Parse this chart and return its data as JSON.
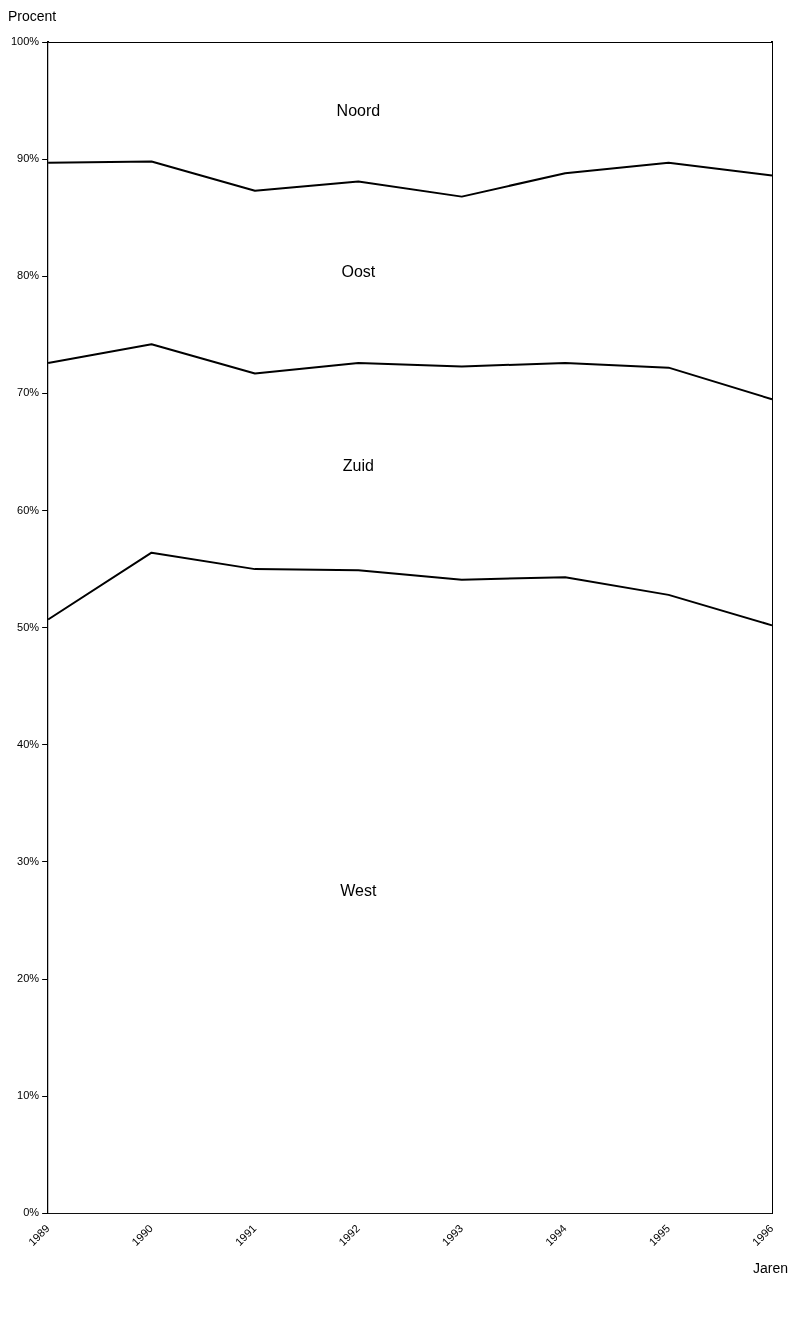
{
  "chart_data": {
    "type": "area",
    "stacked": true,
    "xlabel": "Jaren",
    "ylabel": "Procent",
    "categories": [
      "1989",
      "1990",
      "1991",
      "1992",
      "1993",
      "1994",
      "1995",
      "1996"
    ],
    "series": [
      {
        "name": "West",
        "color": "#ffffff",
        "values": [
          50.7,
          56.4,
          55.0,
          54.9,
          54.1,
          54.3,
          52.8,
          50.2
        ]
      },
      {
        "name": "Zuid",
        "color": "#ffffff",
        "values": [
          21.9,
          17.8,
          16.7,
          17.7,
          18.2,
          18.3,
          19.4,
          19.3
        ]
      },
      {
        "name": "Oost",
        "color": "#ffffff",
        "values": [
          17.1,
          15.6,
          15.6,
          15.5,
          14.5,
          16.2,
          17.5,
          19.1
        ]
      },
      {
        "name": "Noord",
        "color": "#ffffff",
        "values": [
          10.3,
          10.2,
          12.7,
          11.9,
          13.2,
          11.2,
          10.3,
          11.4
        ]
      }
    ],
    "ylim": [
      0,
      100
    ],
    "yticks": [
      {
        "value": 0,
        "label": "0%"
      },
      {
        "value": 10,
        "label": "10%"
      },
      {
        "value": 20,
        "label": "20%"
      },
      {
        "value": 30,
        "label": "30%"
      },
      {
        "value": 40,
        "label": "40%"
      },
      {
        "value": 50,
        "label": "50%"
      },
      {
        "value": 60,
        "label": "60%"
      },
      {
        "value": 70,
        "label": "70%"
      },
      {
        "value": 80,
        "label": "80%"
      },
      {
        "value": 90,
        "label": "90%"
      },
      {
        "value": 100,
        "label": "100%"
      }
    ],
    "grid": false,
    "legend": false
  }
}
